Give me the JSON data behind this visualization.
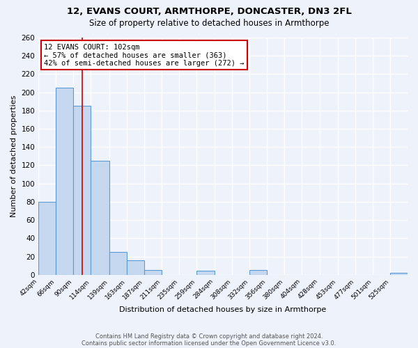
{
  "title1": "12, EVANS COURT, ARMTHORPE, DONCASTER, DN3 2FL",
  "title2": "Size of property relative to detached houses in Armthorpe",
  "xlabel": "Distribution of detached houses by size in Armthorpe",
  "ylabel": "Number of detached properties",
  "footnote1": "Contains HM Land Registry data © Crown copyright and database right 2024.",
  "footnote2": "Contains public sector information licensed under the Open Government Licence v3.0.",
  "bin_edges": [
    42,
    66,
    90,
    114,
    139,
    163,
    187,
    211,
    235,
    259,
    284,
    308,
    332,
    356,
    380,
    404,
    428,
    453,
    477,
    501,
    525
  ],
  "bar_heights": [
    80,
    205,
    185,
    125,
    25,
    16,
    5,
    0,
    0,
    4,
    0,
    0,
    5,
    0,
    0,
    0,
    0,
    0,
    0,
    0,
    2
  ],
  "bar_color": "#c5d8ef",
  "bar_edge_color": "#5b9bd5",
  "red_line_x": 102,
  "ylim": [
    0,
    260
  ],
  "yticks": [
    0,
    20,
    40,
    60,
    80,
    100,
    120,
    140,
    160,
    180,
    200,
    220,
    240,
    260
  ],
  "annotation_title": "12 EVANS COURT: 102sqm",
  "annotation_line1": "← 57% of detached houses are smaller (363)",
  "annotation_line2": "42% of semi-detached houses are larger (272) →",
  "annotation_box_color": "#ffffff",
  "annotation_box_edge_color": "#cc0000",
  "background_color": "#eef2fb",
  "grid_color": "#ffffff",
  "axis_bg_color": "#eef2fb"
}
